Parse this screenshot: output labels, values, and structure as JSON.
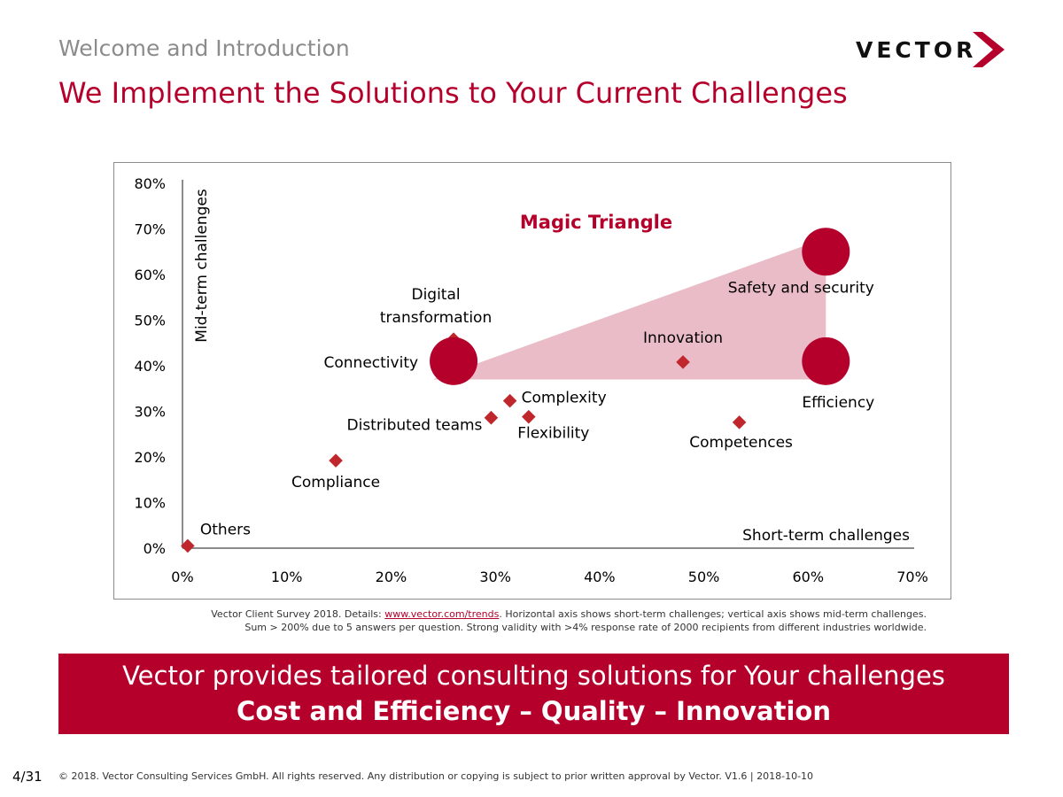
{
  "header": {
    "section_title": "Welcome and Introduction",
    "page_title": "We Implement the Solutions to Your Current Challenges",
    "logo_text": "VECTOR"
  },
  "colors": {
    "brand": "#b5002c",
    "triangle_fill": "#eabcc7",
    "point": "#c0272d",
    "big_marker": "#b5002c"
  },
  "chart_data": {
    "type": "scatter",
    "annotation": "Magic Triangle",
    "xlabel": "Short-term challenges",
    "ylabel": "Mid-term challenges",
    "xlim": [
      0,
      70
    ],
    "ylim": [
      0,
      80
    ],
    "x_ticks": [
      "0%",
      "10%",
      "20%",
      "30%",
      "40%",
      "50%",
      "60%",
      "70%"
    ],
    "y_ticks": [
      "0%",
      "10%",
      "20%",
      "30%",
      "40%",
      "50%",
      "60%",
      "70%",
      "80%"
    ],
    "grid": false,
    "points": [
      {
        "label": "Others",
        "x": 0.5,
        "y": 0.5
      },
      {
        "label": "Compliance",
        "x": 14.7,
        "y": 19.2
      },
      {
        "label": "Distributed teams",
        "x": 29.6,
        "y": 28.6
      },
      {
        "label": "Complexity",
        "x": 31.4,
        "y": 32.3
      },
      {
        "label": "Flexibility",
        "x": 33.2,
        "y": 28.8
      },
      {
        "label": "Digital transformation",
        "x": 26.0,
        "y": 45.8
      },
      {
        "label": "Connectivity",
        "x": 26.0,
        "y": 41.0,
        "highlight": true
      },
      {
        "label": "Innovation",
        "x": 48.0,
        "y": 40.8
      },
      {
        "label": "Competences",
        "x": 53.4,
        "y": 27.6
      },
      {
        "label": "Safety and security",
        "x": 61.7,
        "y": 65.0,
        "highlight": true
      },
      {
        "label": "Efficiency",
        "x": 61.7,
        "y": 41.0,
        "highlight": true
      }
    ],
    "triangle": [
      [
        24.0,
        37.0
      ],
      [
        61.7,
        68.0
      ],
      [
        61.7,
        37.0
      ]
    ]
  },
  "footnote": {
    "prefix": "Vector Client Survey 2018. Details: ",
    "link": "www.vector.com/trends",
    "suffix": ". Horizontal axis shows short-term challenges; vertical axis shows mid-term challenges.",
    "line2": "Sum > 200% due to 5 answers per question. Strong validity with >4% response rate of 2000 recipients from different industries worldwide."
  },
  "banner": {
    "line1": "Vector provides tailored consulting solutions for Your challenges",
    "line2": "Cost and Efficiency – Quality – Innovation"
  },
  "footer": {
    "page_number": "4/31",
    "copyright": "© 2018. Vector Consulting Services GmbH. All rights reserved. Any distribution or copying is subject to prior written approval by Vector. V1.6 | 2018-10-10"
  }
}
